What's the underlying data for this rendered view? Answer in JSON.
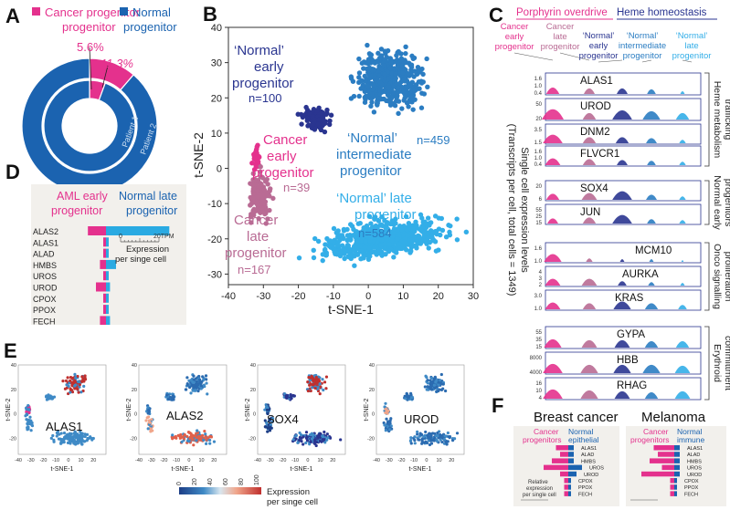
{
  "figure": {
    "panels": {
      "A": "A",
      "B": "B",
      "C": "C",
      "D": "D",
      "E": "E",
      "F": "F"
    },
    "colors": {
      "cancer_early": "#e4318d",
      "cancer_late": "#b96b94",
      "normal_early": "#2a3590",
      "normal_intermediate": "#2b7dc2",
      "normal_late": "#33aee8",
      "normal_blue": "#1b63b0",
      "aml_pink": "#e4318d",
      "aml_blue": "#2aaae2"
    }
  },
  "panel_a": {
    "legend_cancer": "Cancer progenitor",
    "legend_normal_1": "Normal",
    "legend_normal_2": "progenitor",
    "pct_inner": "5.6%",
    "pct_outer": "11.3%",
    "ring_inner": "Patient 1",
    "ring_outer": "Patient 2",
    "chart_data": [
      {
        "type": "pie",
        "title": "",
        "series": [
          {
            "name": "Patient 1",
            "values": [
              5.6,
              94.4
            ]
          },
          {
            "name": "Patient 2",
            "values": [
              11.3,
              88.7
            ]
          }
        ],
        "categories": [
          "Cancer progenitor",
          "Normal progenitor"
        ]
      }
    ]
  },
  "panel_b": {
    "xlabel": "t-SNE-1",
    "ylabel": "t-SNE-2",
    "xticks": [
      "-40",
      "-30",
      "-20",
      "-10",
      "0",
      "10",
      "20",
      "30"
    ],
    "yticks": [
      "40",
      "30",
      "20",
      "10",
      "0",
      "-10",
      "-20",
      "-30"
    ],
    "labels": {
      "normal_early_1": "‘Normal’",
      "normal_early_2": "early",
      "normal_early_3": "progenitor",
      "normal_early_n": "n=100",
      "cancer_early_1": "Cancer",
      "cancer_early_2": "early",
      "cancer_early_3": "progenitor",
      "cancer_early_n": "n=39",
      "normal_inter_1": "‘Normal’",
      "normal_inter_2": "intermediate",
      "normal_inter_3": "progenitor",
      "normal_inter_n": "n=459",
      "cancer_late_1": "Cancer",
      "cancer_late_2": "late",
      "cancer_late_3": "progenitor",
      "cancer_late_n": "n=167",
      "normal_late_1": "‘Normal’ late",
      "normal_late_2": "progenitor",
      "normal_late_n": "n=584"
    },
    "chart_data": {
      "type": "scatter",
      "xlabel": "t-SNE-1",
      "ylabel": "t-SNE-2",
      "xlim": [
        -40,
        30
      ],
      "ylim": [
        -33,
        40
      ],
      "series": [
        {
          "name": "‘Normal’ early progenitor",
          "n": 100,
          "center": [
            -15,
            14
          ],
          "spread": [
            4,
            3
          ]
        },
        {
          "name": "Cancer early progenitor",
          "n": 39,
          "center": [
            -32,
            3
          ],
          "spread": [
            1,
            3
          ]
        },
        {
          "name": "‘Normal’ intermediate progenitor",
          "n": 459,
          "center": [
            6,
            25
          ],
          "spread": [
            9,
            8
          ]
        },
        {
          "name": "Cancer late progenitor",
          "n": 167,
          "center": [
            -31,
            -8
          ],
          "spread": [
            3,
            6
          ]
        },
        {
          "name": "‘Normal’ late progenitor",
          "n": 584,
          "center": [
            5,
            -20
          ],
          "spread": [
            17,
            5
          ]
        }
      ]
    }
  },
  "panel_c": {
    "header_left": "Porphyrin overdrive",
    "header_right": "Heme homeostasis",
    "columns": [
      {
        "l1": "Cancer",
        "l2": "early",
        "l3": "progenitor"
      },
      {
        "l1": "Cancer",
        "l2": "late",
        "l3": "progenitor"
      },
      {
        "l1": "‘Normal’",
        "l2": "early",
        "l3": "progenitor"
      },
      {
        "l1": "‘Normal’",
        "l2": "intermediate",
        "l3": "progenitor"
      },
      {
        "l1": "‘Normal’",
        "l2": "late",
        "l3": "progenitor"
      }
    ],
    "ylabel_1": "Single cell expression levels",
    "ylabel_2": "(Transcripts per cell, total cells = 1349)",
    "genes": [
      {
        "name": "ALAS1",
        "ticks": [
          "1.6",
          "1.0",
          "0.4"
        ]
      },
      {
        "name": "UROD",
        "ticks": [
          "50",
          "20"
        ]
      },
      {
        "name": "DNM2",
        "ticks": [
          "3.5",
          "1.5"
        ]
      },
      {
        "name": "FLVCR1",
        "ticks": [
          "1.6",
          "1.0",
          "0.4"
        ]
      },
      {
        "name": "SOX4",
        "ticks": [
          "20",
          "6"
        ]
      },
      {
        "name": "JUN",
        "ticks": [
          "55",
          "25",
          "15"
        ]
      },
      {
        "name": "MCM10",
        "ticks": [
          "1.6",
          "1.0"
        ]
      },
      {
        "name": "AURKA",
        "ticks": [
          "4",
          "3",
          "2"
        ]
      },
      {
        "name": "KRAS",
        "ticks": [
          "3.0",
          "1.0"
        ]
      },
      {
        "name": "GYPA",
        "ticks": [
          "55",
          "35",
          "15"
        ]
      },
      {
        "name": "HBB",
        "ticks": [
          "8000",
          "4000"
        ]
      },
      {
        "name": "RHAG",
        "ticks": [
          "16",
          "10",
          "4"
        ]
      }
    ],
    "groups": [
      {
        "l1": "Heme metabolism",
        "l2": "trafficking"
      },
      {
        "l1": "Normal early",
        "l2": "progenitors"
      },
      {
        "l1": "Onco signalling",
        "l2": "proliferation"
      },
      {
        "l1": "Erythroid",
        "l2": "committment"
      }
    ]
  },
  "panel_d": {
    "legend_left_1": "AML early",
    "legend_left_2": "progenitor",
    "legend_right_1": "Normal late",
    "legend_right_2": "progenitor",
    "scale_0": "0",
    "scale_20": "20TPM",
    "scale_label_1": "Expression",
    "scale_label_2": "per singe cell",
    "chart_data": {
      "type": "bar",
      "categories": [
        "ALAS2",
        "ALAS1",
        "ALAD",
        "HMBS",
        "UROS",
        "UROD",
        "CPOX",
        "PPOX",
        "FECH"
      ],
      "series": [
        {
          "name": "AML early progenitor",
          "values": [
            9,
            1,
            0.8,
            3,
            1.2,
            5,
            0.6,
            0.6,
            3
          ]
        },
        {
          "name": "Normal late progenitor",
          "values": [
            21,
            0.4,
            0.6,
            5,
            1,
            2,
            0.4,
            0.4,
            2
          ]
        }
      ],
      "xlim": [
        0,
        20
      ]
    }
  },
  "panel_e": {
    "plots": [
      {
        "title": "ALAS1",
        "xlabel": "t-SNE-1",
        "ylabel": "t-SNE-2"
      },
      {
        "title": "ALAS2",
        "xlabel": "t-SNE-1",
        "ylabel": "t-SNE-2"
      },
      {
        "title": "SOX4",
        "xlabel": "t-SNE-1",
        "ylabel": "t-SNE-2"
      },
      {
        "title": "UROD",
        "xlabel": "t-SNE-1",
        "ylabel": "t-SNE-2"
      }
    ],
    "xticks": [
      "-40",
      "-30",
      "-20",
      "-10",
      "0",
      "10",
      "20"
    ],
    "yticks": [
      "40",
      "20",
      "0",
      "-20"
    ],
    "colorbar_ticks": [
      "0",
      "20",
      "40",
      "60",
      "80",
      "100"
    ],
    "colorbar_label_1": "Expression",
    "colorbar_label_2": "per singe cell"
  },
  "panel_f": {
    "left": {
      "title": "Breast cancer",
      "leg_left_1": "Cancer",
      "leg_left_2": "progenitors",
      "leg_right_1": "Normal",
      "leg_right_2": "epithelial",
      "genes": [
        "ALAS1",
        "ALAD",
        "HMBS",
        "UROS",
        "UROD",
        "CPOX",
        "PPOX",
        "FECH"
      ],
      "scale_label_1": "Relative",
      "scale_label_2": "expression",
      "scale_label_3": "per single cell",
      "chart_data": {
        "type": "bar",
        "categories": [
          "ALAS1",
          "ALAD",
          "HMBS",
          "UROS",
          "UROD",
          "CPOX",
          "PPOX",
          "FECH"
        ],
        "series": [
          {
            "name": "Cancer progenitors",
            "values": [
              3,
              2,
              4,
              6,
              2,
              1,
              1,
              1
            ]
          },
          {
            "name": "Normal epithelial",
            "values": [
              2,
              2,
              2,
              5,
              3,
              1,
              1,
              1
            ]
          }
        ]
      }
    },
    "right": {
      "title": "Melanoma",
      "leg_left_1": "Cancer",
      "leg_left_2": "progenitors",
      "leg_right_1": "Normal",
      "leg_right_2": "immune",
      "genes": [
        "ALAS1",
        "ALAD",
        "HMBS",
        "UROS",
        "UROD",
        "CPOX",
        "PPOX",
        "FECH"
      ],
      "chart_data": {
        "type": "bar",
        "categories": [
          "ALAS1",
          "ALAD",
          "HMBS",
          "UROS",
          "UROD",
          "CPOX",
          "PPOX",
          "FECH"
        ],
        "series": [
          {
            "name": "Cancer progenitors",
            "values": [
              5,
              4,
              6,
              3,
              8,
              1,
              1,
              1
            ]
          },
          {
            "name": "Normal immune",
            "values": [
              2,
              2,
              2,
              2,
              2,
              1,
              1,
              1
            ]
          }
        ]
      }
    }
  }
}
